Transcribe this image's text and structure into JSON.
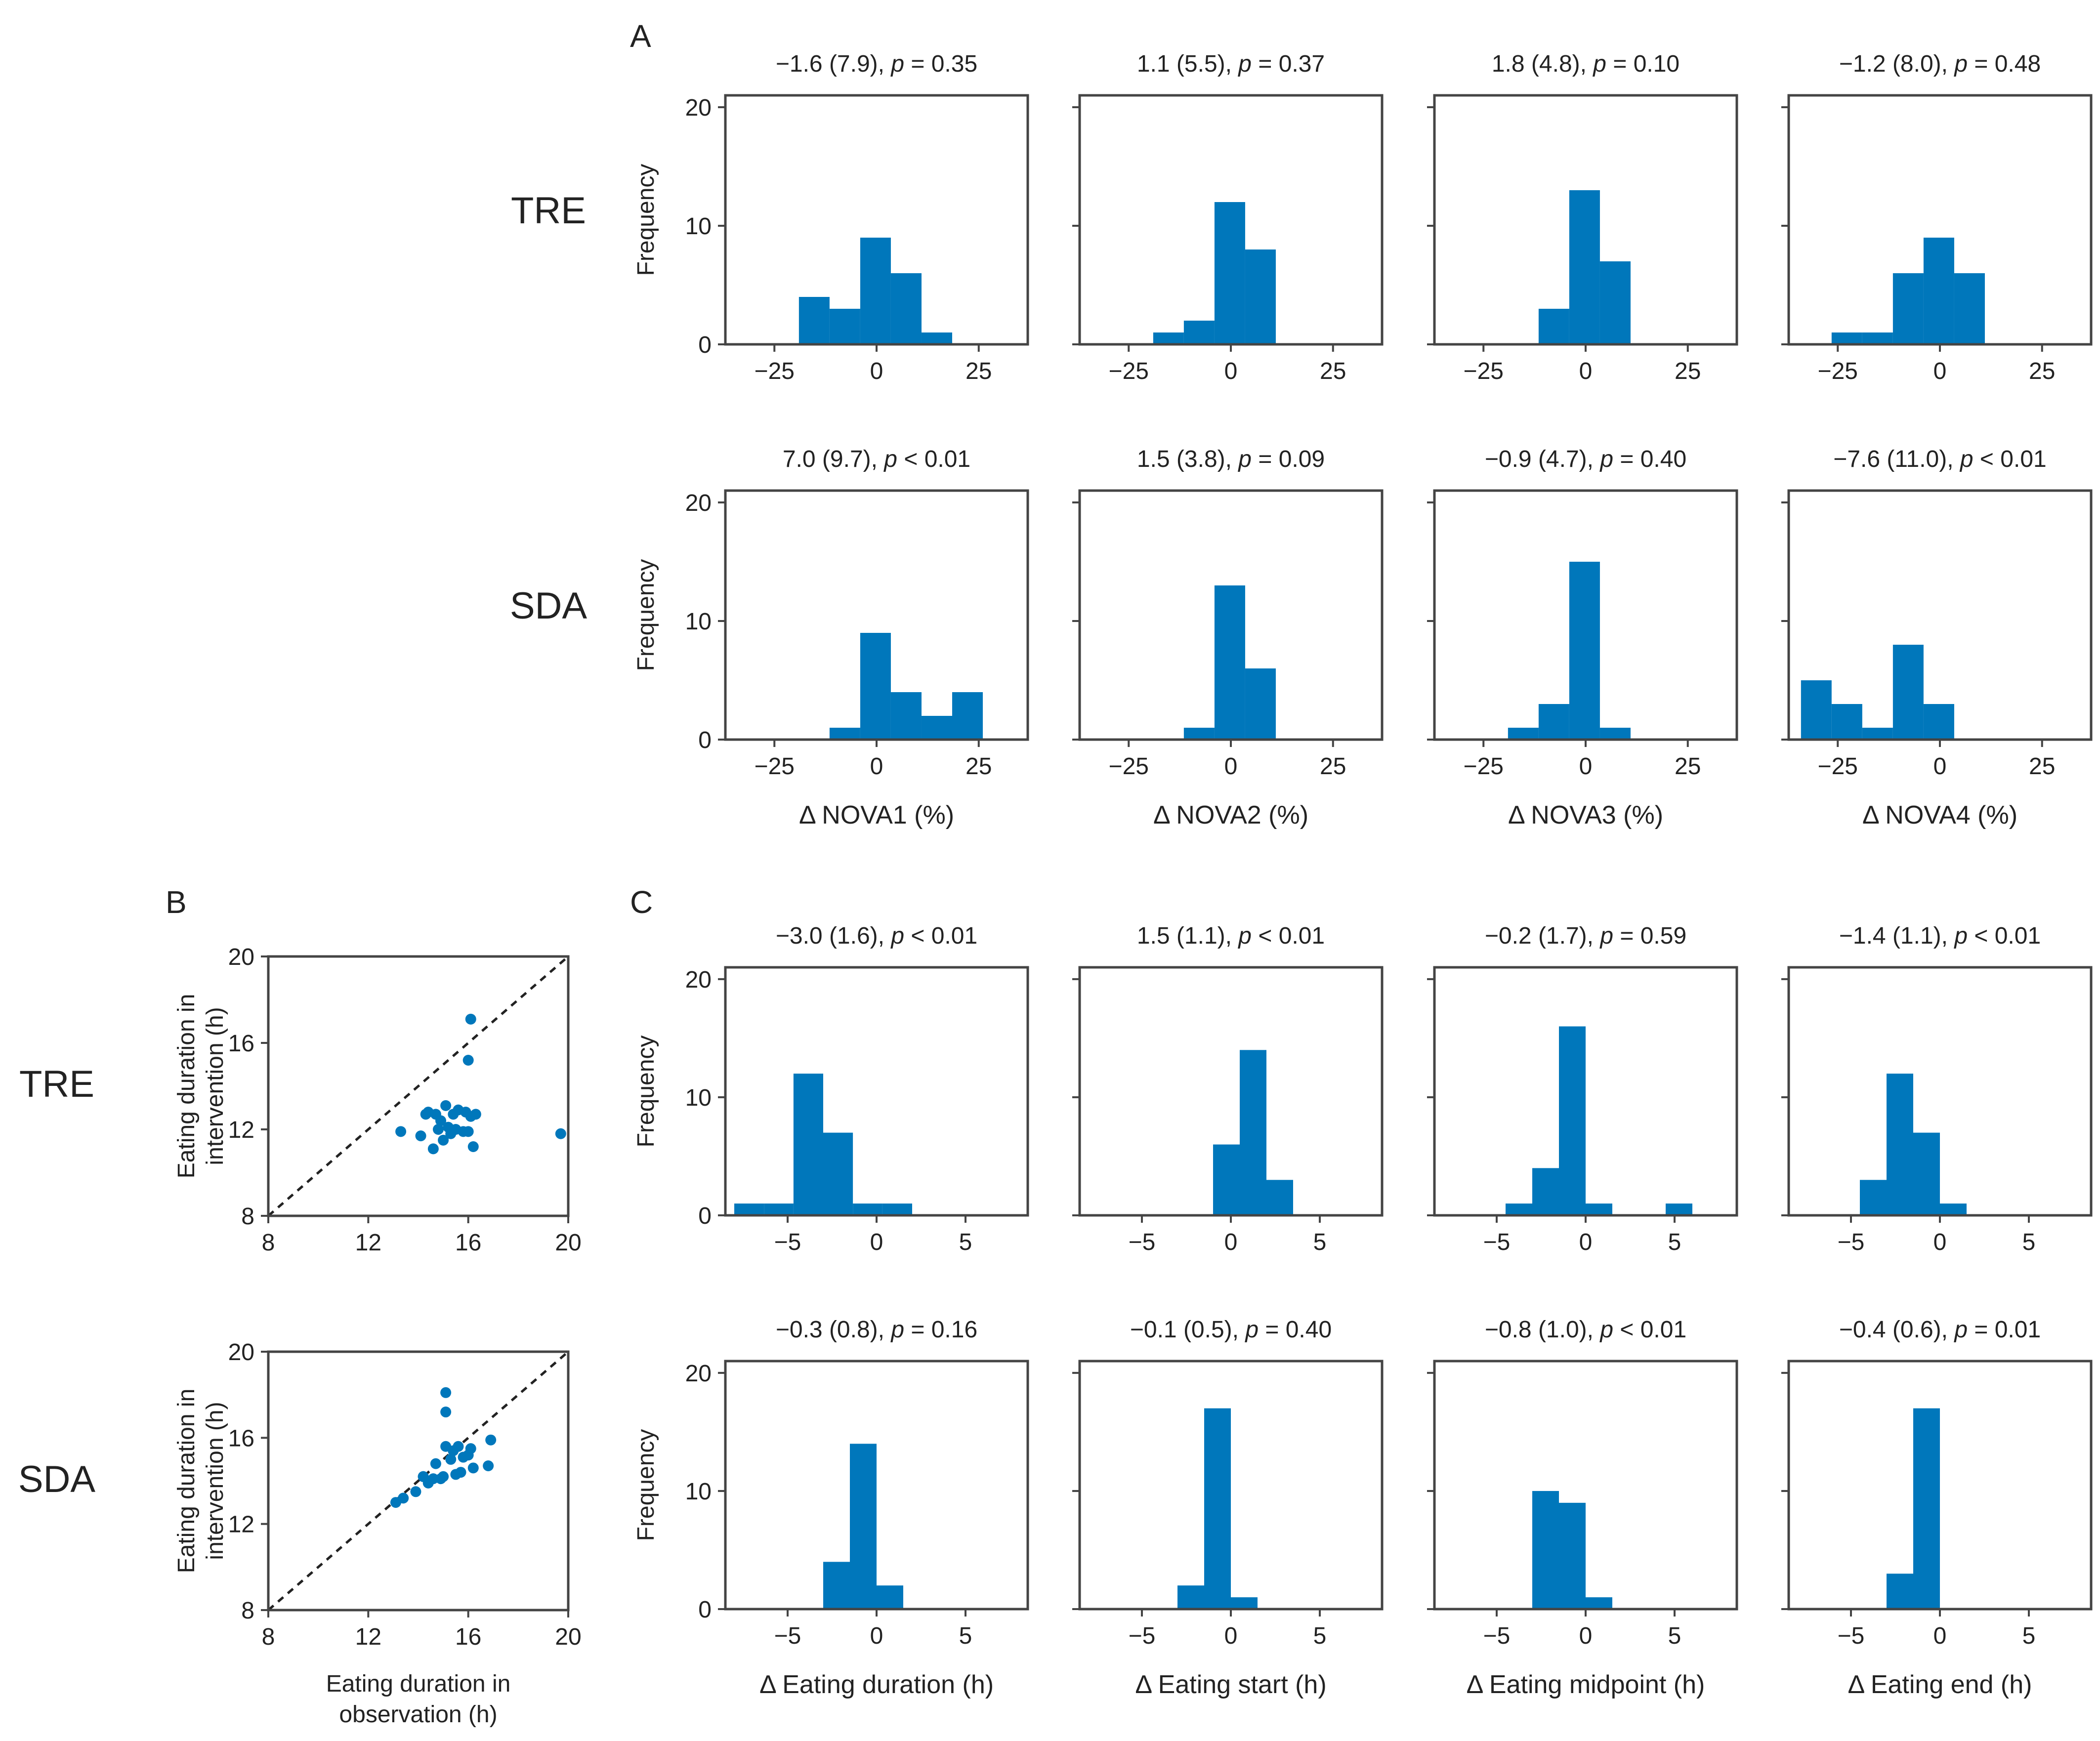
{
  "figure": {
    "bar_color": "#0077BB",
    "axis_color": "#444444",
    "text_color": "#222222",
    "panel_labels": {
      "A": "A",
      "B": "B",
      "C": "C"
    },
    "row_labels": {
      "tre": "TRE",
      "sda": "SDA"
    }
  },
  "chart_data": [
    {
      "id": "A_TRE_NOVA1",
      "type": "bar",
      "panel": "A",
      "row": "TRE",
      "title": "−1.6 (7.9), p = 0.35",
      "xlabel": "",
      "ylabel": "Frequency",
      "xlim": [
        -37,
        37
      ],
      "ylim": [
        0,
        21
      ],
      "xticks": [
        -25,
        0,
        25
      ],
      "yticks": [
        0,
        10,
        20
      ],
      "bins": [
        [
          -19,
          -11.5,
          4
        ],
        [
          -11.5,
          -4,
          3
        ],
        [
          -4,
          3.5,
          9
        ],
        [
          3.5,
          11,
          6
        ],
        [
          11,
          18.5,
          1
        ]
      ]
    },
    {
      "id": "A_TRE_NOVA2",
      "type": "bar",
      "panel": "A",
      "row": "TRE",
      "title": "1.1 (5.5), p = 0.37",
      "xlabel": "",
      "ylabel": "",
      "xlim": [
        -37,
        37
      ],
      "ylim": [
        0,
        21
      ],
      "xticks": [
        -25,
        0,
        25
      ],
      "yticks": [
        0,
        10,
        20
      ],
      "bins": [
        [
          -19,
          -11.5,
          1
        ],
        [
          -11.5,
          -4,
          2
        ],
        [
          -4,
          3.5,
          12
        ],
        [
          3.5,
          11,
          8
        ]
      ]
    },
    {
      "id": "A_TRE_NOVA3",
      "type": "bar",
      "panel": "A",
      "row": "TRE",
      "title": "1.8 (4.8), p = 0.10",
      "xlabel": "",
      "ylabel": "",
      "xlim": [
        -37,
        37
      ],
      "ylim": [
        0,
        21
      ],
      "xticks": [
        -25,
        0,
        25
      ],
      "yticks": [
        0,
        10,
        20
      ],
      "bins": [
        [
          -11.5,
          -4,
          3
        ],
        [
          -4,
          3.5,
          13
        ],
        [
          3.5,
          11,
          7
        ]
      ]
    },
    {
      "id": "A_TRE_NOVA4",
      "type": "bar",
      "panel": "A",
      "row": "TRE",
      "title": "−1.2 (8.0), p = 0.48",
      "xlabel": "",
      "ylabel": "",
      "xlim": [
        -37,
        37
      ],
      "ylim": [
        0,
        21
      ],
      "xticks": [
        -25,
        0,
        25
      ],
      "yticks": [
        0,
        10,
        20
      ],
      "bins": [
        [
          -26.5,
          -19,
          1
        ],
        [
          -19,
          -11.5,
          1
        ],
        [
          -11.5,
          -4,
          6
        ],
        [
          -4,
          3.5,
          9
        ],
        [
          3.5,
          11,
          6
        ]
      ]
    },
    {
      "id": "A_SDA_NOVA1",
      "type": "bar",
      "panel": "A",
      "row": "SDA",
      "title": "7.0 (9.7), p < 0.01",
      "xlabel": "Δ NOVA1 (%)",
      "ylabel": "Frequency",
      "xlim": [
        -37,
        37
      ],
      "ylim": [
        0,
        21
      ],
      "xticks": [
        -25,
        0,
        25
      ],
      "yticks": [
        0,
        10,
        20
      ],
      "bins": [
        [
          -11.5,
          -4,
          1
        ],
        [
          -4,
          3.5,
          9
        ],
        [
          3.5,
          11,
          4
        ],
        [
          11,
          18.5,
          2
        ],
        [
          18.5,
          26,
          4
        ]
      ]
    },
    {
      "id": "A_SDA_NOVA2",
      "type": "bar",
      "panel": "A",
      "row": "SDA",
      "title": "1.5 (3.8), p = 0.09",
      "xlabel": "Δ NOVA2 (%)",
      "ylabel": "",
      "xlim": [
        -37,
        37
      ],
      "ylim": [
        0,
        21
      ],
      "xticks": [
        -25,
        0,
        25
      ],
      "yticks": [
        0,
        10,
        20
      ],
      "bins": [
        [
          -11.5,
          -4,
          1
        ],
        [
          -4,
          3.5,
          13
        ],
        [
          3.5,
          11,
          6
        ]
      ]
    },
    {
      "id": "A_SDA_NOVA3",
      "type": "bar",
      "panel": "A",
      "row": "SDA",
      "title": "−0.9 (4.7), p = 0.40",
      "xlabel": "Δ NOVA3 (%)",
      "ylabel": "",
      "xlim": [
        -37,
        37
      ],
      "ylim": [
        0,
        21
      ],
      "xticks": [
        -25,
        0,
        25
      ],
      "yticks": [
        0,
        10,
        20
      ],
      "bins": [
        [
          -19,
          -11.5,
          1
        ],
        [
          -11.5,
          -4,
          3
        ],
        [
          -4,
          3.5,
          15
        ],
        [
          3.5,
          11,
          1
        ]
      ]
    },
    {
      "id": "A_SDA_NOVA4",
      "type": "bar",
      "panel": "A",
      "row": "SDA",
      "title": "−7.6 (11.0), p < 0.01",
      "xlabel": "Δ NOVA4 (%)",
      "ylabel": "",
      "xlim": [
        -37,
        37
      ],
      "ylim": [
        0,
        21
      ],
      "xticks": [
        -25,
        0,
        25
      ],
      "yticks": [
        0,
        10,
        20
      ],
      "bins": [
        [
          -34,
          -26.5,
          5
        ],
        [
          -26.5,
          -19,
          3
        ],
        [
          -19,
          -11.5,
          1
        ],
        [
          -11.5,
          -4,
          8
        ],
        [
          -4,
          3.5,
          3
        ]
      ]
    },
    {
      "id": "C_TRE_duration",
      "type": "bar",
      "panel": "C",
      "row": "TRE",
      "title": "−3.0 (1.6), p < 0.01",
      "xlabel": "",
      "ylabel": "Frequency",
      "xlim": [
        -8.5,
        8.5
      ],
      "ylim": [
        0,
        21
      ],
      "xticks": [
        -5,
        0,
        5
      ],
      "yticks": [
        0,
        10,
        20
      ],
      "bins": [
        [
          -8,
          -6.33,
          1
        ],
        [
          -6.33,
          -4.67,
          1
        ],
        [
          -4.67,
          -3,
          12
        ],
        [
          -3,
          -1.33,
          7
        ],
        [
          -1.33,
          0.33,
          1
        ],
        [
          0.33,
          2,
          1
        ]
      ]
    },
    {
      "id": "C_TRE_start",
      "type": "bar",
      "panel": "C",
      "row": "TRE",
      "title": "1.5 (1.1), p < 0.01",
      "xlabel": "",
      "ylabel": "",
      "xlim": [
        -8.5,
        8.5
      ],
      "ylim": [
        0,
        21
      ],
      "xticks": [
        -5,
        0,
        5
      ],
      "yticks": [
        0,
        10,
        20
      ],
      "bins": [
        [
          -1,
          0.5,
          6
        ],
        [
          0.5,
          2,
          14
        ],
        [
          2,
          3.5,
          3
        ]
      ]
    },
    {
      "id": "C_TRE_midpoint",
      "type": "bar",
      "panel": "C",
      "row": "TRE",
      "title": "−0.2 (1.7), p = 0.59",
      "xlabel": "",
      "ylabel": "",
      "xlim": [
        -8.5,
        8.5
      ],
      "ylim": [
        0,
        21
      ],
      "xticks": [
        -5,
        0,
        5
      ],
      "yticks": [
        0,
        10,
        20
      ],
      "bins": [
        [
          -4.5,
          -3,
          1
        ],
        [
          -3,
          -1.5,
          4
        ],
        [
          -1.5,
          0,
          16
        ],
        [
          0,
          1.5,
          1
        ],
        [
          4.5,
          6,
          1
        ]
      ]
    },
    {
      "id": "C_TRE_end",
      "type": "bar",
      "panel": "C",
      "row": "TRE",
      "title": "−1.4 (1.1), p < 0.01",
      "xlabel": "",
      "ylabel": "",
      "xlim": [
        -8.5,
        8.5
      ],
      "ylim": [
        0,
        21
      ],
      "xticks": [
        -5,
        0,
        5
      ],
      "yticks": [
        0,
        10,
        20
      ],
      "bins": [
        [
          -4.5,
          -3,
          3
        ],
        [
          -3,
          -1.5,
          12
        ],
        [
          -1.5,
          0,
          7
        ],
        [
          0,
          1.5,
          1
        ]
      ]
    },
    {
      "id": "C_SDA_duration",
      "type": "bar",
      "panel": "C",
      "row": "SDA",
      "title": "−0.3 (0.8), p = 0.16",
      "xlabel": "Δ Eating duration (h)",
      "ylabel": "Frequency",
      "xlim": [
        -8.5,
        8.5
      ],
      "ylim": [
        0,
        21
      ],
      "xticks": [
        -5,
        0,
        5
      ],
      "yticks": [
        0,
        10,
        20
      ],
      "bins": [
        [
          -3,
          -1.5,
          4
        ],
        [
          -1.5,
          0,
          14
        ],
        [
          0,
          1.5,
          2
        ]
      ]
    },
    {
      "id": "C_SDA_start",
      "type": "bar",
      "panel": "C",
      "row": "SDA",
      "title": "−0.1 (0.5), p = 0.40",
      "xlabel": "Δ Eating start (h)",
      "ylabel": "",
      "xlim": [
        -8.5,
        8.5
      ],
      "ylim": [
        0,
        21
      ],
      "xticks": [
        -5,
        0,
        5
      ],
      "yticks": [
        0,
        10,
        20
      ],
      "bins": [
        [
          -3,
          -1.5,
          2
        ],
        [
          -1.5,
          0,
          17
        ],
        [
          0,
          1.5,
          1
        ]
      ]
    },
    {
      "id": "C_SDA_midpoint",
      "type": "bar",
      "panel": "C",
      "row": "SDA",
      "title": "−0.8 (1.0), p < 0.01",
      "xlabel": "Δ Eating midpoint (h)",
      "ylabel": "",
      "xlim": [
        -8.5,
        8.5
      ],
      "ylim": [
        0,
        21
      ],
      "xticks": [
        -5,
        0,
        5
      ],
      "yticks": [
        0,
        10,
        20
      ],
      "bins": [
        [
          -3,
          -1.5,
          10
        ],
        [
          -1.5,
          0,
          9
        ],
        [
          0,
          1.5,
          1
        ]
      ]
    },
    {
      "id": "C_SDA_end",
      "type": "bar",
      "panel": "C",
      "row": "SDA",
      "title": "−0.4 (0.6), p = 0.01",
      "xlabel": "Δ Eating end (h)",
      "ylabel": "",
      "xlim": [
        -8.5,
        8.5
      ],
      "ylim": [
        0,
        21
      ],
      "xticks": [
        -5,
        0,
        5
      ],
      "yticks": [
        0,
        10,
        20
      ],
      "bins": [
        [
          -3,
          -1.5,
          3
        ],
        [
          -1.5,
          0,
          17
        ]
      ]
    },
    {
      "id": "B_TRE",
      "type": "scatter",
      "panel": "B",
      "row": "TRE",
      "title": "",
      "xlabel": "",
      "ylabel": [
        "Eating duration in",
        "intervention  (h)"
      ],
      "xlim": [
        8,
        20
      ],
      "ylim": [
        8,
        20
      ],
      "xticks": [
        8,
        12,
        16,
        20
      ],
      "yticks": [
        8,
        12,
        16,
        20
      ],
      "diagonal": true,
      "x": [
        13.3,
        14.1,
        14.3,
        14.4,
        14.6,
        14.7,
        14.8,
        14.9,
        15.0,
        15.1,
        15.2,
        15.3,
        15.4,
        15.5,
        15.6,
        15.8,
        15.9,
        16.0,
        16.1,
        16.2,
        16.3,
        19.7,
        16.1,
        16.0
      ],
      "y": [
        11.9,
        11.7,
        12.7,
        12.8,
        11.1,
        12.7,
        12.0,
        12.4,
        11.5,
        13.1,
        12.1,
        11.8,
        12.7,
        12.0,
        12.9,
        11.9,
        12.8,
        11.9,
        12.6,
        11.2,
        12.7,
        11.8,
        17.1,
        15.2
      ]
    },
    {
      "id": "B_SDA",
      "type": "scatter",
      "panel": "B",
      "row": "SDA",
      "title": "",
      "xlabel": [
        "Eating duration in",
        "observation (h)"
      ],
      "ylabel": [
        "Eating duration in",
        "intervention  (h)"
      ],
      "xlim": [
        8,
        20
      ],
      "ylim": [
        8,
        20
      ],
      "xticks": [
        8,
        12,
        16,
        20
      ],
      "yticks": [
        8,
        12,
        16,
        20
      ],
      "diagonal": true,
      "x": [
        13.1,
        13.4,
        13.9,
        14.2,
        14.4,
        14.6,
        14.7,
        14.9,
        15.0,
        15.1,
        15.1,
        15.3,
        15.4,
        15.5,
        15.6,
        15.7,
        16.0,
        16.1,
        16.2,
        16.8,
        16.9,
        15.1,
        14.2,
        15.8
      ],
      "y": [
        13.0,
        13.2,
        13.5,
        14.2,
        13.9,
        14.1,
        14.8,
        14.1,
        14.2,
        15.6,
        17.2,
        15.0,
        15.4,
        14.3,
        15.6,
        14.4,
        15.2,
        15.5,
        14.6,
        14.7,
        15.9,
        18.1,
        14.2,
        15.1
      ]
    }
  ]
}
